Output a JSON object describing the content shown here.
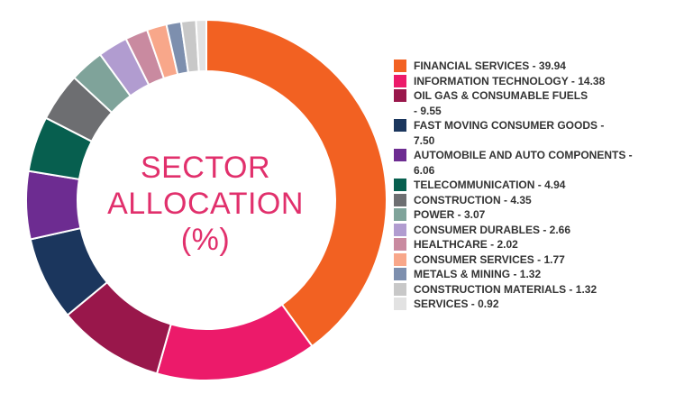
{
  "chart_data": {
    "type": "pie",
    "title_lines": [
      "SECTOR",
      "ALLOCATION",
      "(%)"
    ],
    "legend_position": "right",
    "slices": [
      {
        "label": "FINANCIAL SERVICES",
        "value": 39.94,
        "color": "#f26122"
      },
      {
        "label": "INFORMATION TECHNOLOGY",
        "value": 14.38,
        "color": "#ec1a6a"
      },
      {
        "label": "OIL GAS & CONSUMABLE FUELS",
        "value": 9.55,
        "color": "#99174b"
      },
      {
        "label": "FAST MOVING CONSUMER GOODS",
        "value": 7.5,
        "color": "#1b365d"
      },
      {
        "label": "AUTOMOBILE AND AUTO COMPONENTS",
        "value": 6.06,
        "color": "#6d2c91"
      },
      {
        "label": "TELECOMMUNICATION",
        "value": 4.94,
        "color": "#075f4f"
      },
      {
        "label": "CONSTRUCTION",
        "value": 4.35,
        "color": "#6d6e71"
      },
      {
        "label": "POWER",
        "value": 3.07,
        "color": "#7fa39a"
      },
      {
        "label": "CONSUMER DURABLES",
        "value": 2.66,
        "color": "#b19cd0"
      },
      {
        "label": "HEALTHCARE",
        "value": 2.02,
        "color": "#c98aa0"
      },
      {
        "label": "CONSUMER SERVICES",
        "value": 1.77,
        "color": "#f8a78a"
      },
      {
        "label": "METALS & MINING",
        "value": 1.32,
        "color": "#7d8fae"
      },
      {
        "label": "CONSTRUCTION MATERIALS",
        "value": 1.32,
        "color": "#c8c8c8"
      },
      {
        "label": "SERVICES",
        "value": 0.92,
        "color": "#e2e2e2"
      }
    ],
    "legend": [
      {
        "lines": [
          "FINANCIAL SERVICES - 39.94"
        ]
      },
      {
        "lines": [
          "INFORMATION TECHNOLOGY - 14.38"
        ]
      },
      {
        "lines": [
          "OIL GAS & CONSUMABLE FUELS",
          "- 9.55"
        ]
      },
      {
        "lines": [
          "FAST MOVING CONSUMER GOODS -",
          "7.50"
        ]
      },
      {
        "lines": [
          "AUTOMOBILE AND AUTO COMPONENTS -",
          "6.06"
        ]
      },
      {
        "lines": [
          "TELECOMMUNICATION - 4.94"
        ]
      },
      {
        "lines": [
          "CONSTRUCTION - 4.35"
        ]
      },
      {
        "lines": [
          "POWER - 3.07"
        ]
      },
      {
        "lines": [
          "CONSUMER DURABLES - 2.66"
        ]
      },
      {
        "lines": [
          "HEALTHCARE - 2.02"
        ]
      },
      {
        "lines": [
          "CONSUMER SERVICES - 1.77"
        ]
      },
      {
        "lines": [
          "METALS & MINING - 1.32"
        ]
      },
      {
        "lines": [
          "CONSTRUCTION MATERIALS - 1.32"
        ]
      },
      {
        "lines": [
          "SERVICES - 0.92"
        ]
      }
    ]
  }
}
